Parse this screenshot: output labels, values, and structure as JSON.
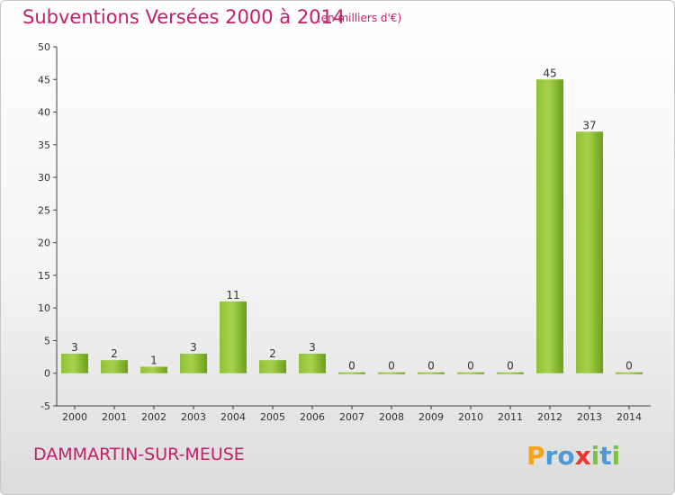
{
  "header": {
    "title": "Subventions Versées 2000 à 2014",
    "subtitle": "(en milliers d'€)"
  },
  "footer": {
    "commune": "DAMMARTIN-SUR-MEUSE",
    "logo_text": "Proxiti"
  },
  "colors": {
    "title": "#c0206a",
    "bar_light": "#a6d24a",
    "bar_dark": "#6a9f1c",
    "axis": "#444444"
  },
  "chart_data": {
    "type": "bar",
    "title": "Subventions Versées 2000 à 2014",
    "subtitle": "(en milliers d'€)",
    "xlabel": "",
    "ylabel": "",
    "categories": [
      "2000",
      "2001",
      "2002",
      "2003",
      "2004",
      "2005",
      "2006",
      "2007",
      "2008",
      "2009",
      "2010",
      "2011",
      "2012",
      "2013",
      "2014"
    ],
    "values": [
      3,
      2,
      1,
      3,
      11,
      2,
      3,
      0,
      0,
      0,
      0,
      0,
      45,
      37,
      0
    ],
    "ylim": [
      -5,
      50
    ],
    "yticks": [
      -5,
      0,
      5,
      10,
      15,
      20,
      25,
      30,
      35,
      40,
      45,
      50
    ],
    "grid": false,
    "legend": "none"
  }
}
